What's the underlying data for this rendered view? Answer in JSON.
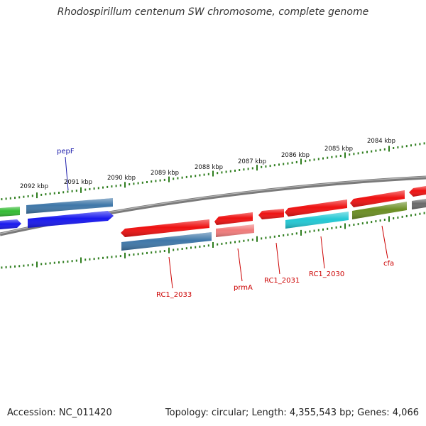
{
  "title": "Rhodospirillum centenum SW chromosome, complete genome",
  "footer": {
    "accession": "Accession: NC_011420",
    "summary": "Topology: circular; Length: 4,355,543 bp; Genes: 4,066"
  },
  "ruler_labels": [
    "2092 kbp",
    "2091 kbp",
    "2090 kbp",
    "2089 kbp",
    "2088 kbp",
    "2087 kbp",
    "2086 kbp",
    "2085 kbp",
    "2084 kbp"
  ],
  "gene_labels": {
    "pepF": "pepF",
    "rc1_2033": "RC1_2033",
    "prmA": "prmA",
    "rc1_2031": "RC1_2031",
    "rc1_2030": "RC1_2030",
    "cfa": "cfa"
  },
  "colors": {
    "backbone": "#7a7a7a",
    "tick": "#2e7d1e",
    "label_red": "#cc0000",
    "label_blue": "#1a1aaa",
    "red": "#ee1111",
    "blue": "#1818ee",
    "steelblue": "#3f77a8",
    "green": "#33bb33",
    "cyan": "#22c8d4",
    "olive": "#6b8e23",
    "pink": "#f07b7b",
    "gray": "#6a6a6a"
  }
}
